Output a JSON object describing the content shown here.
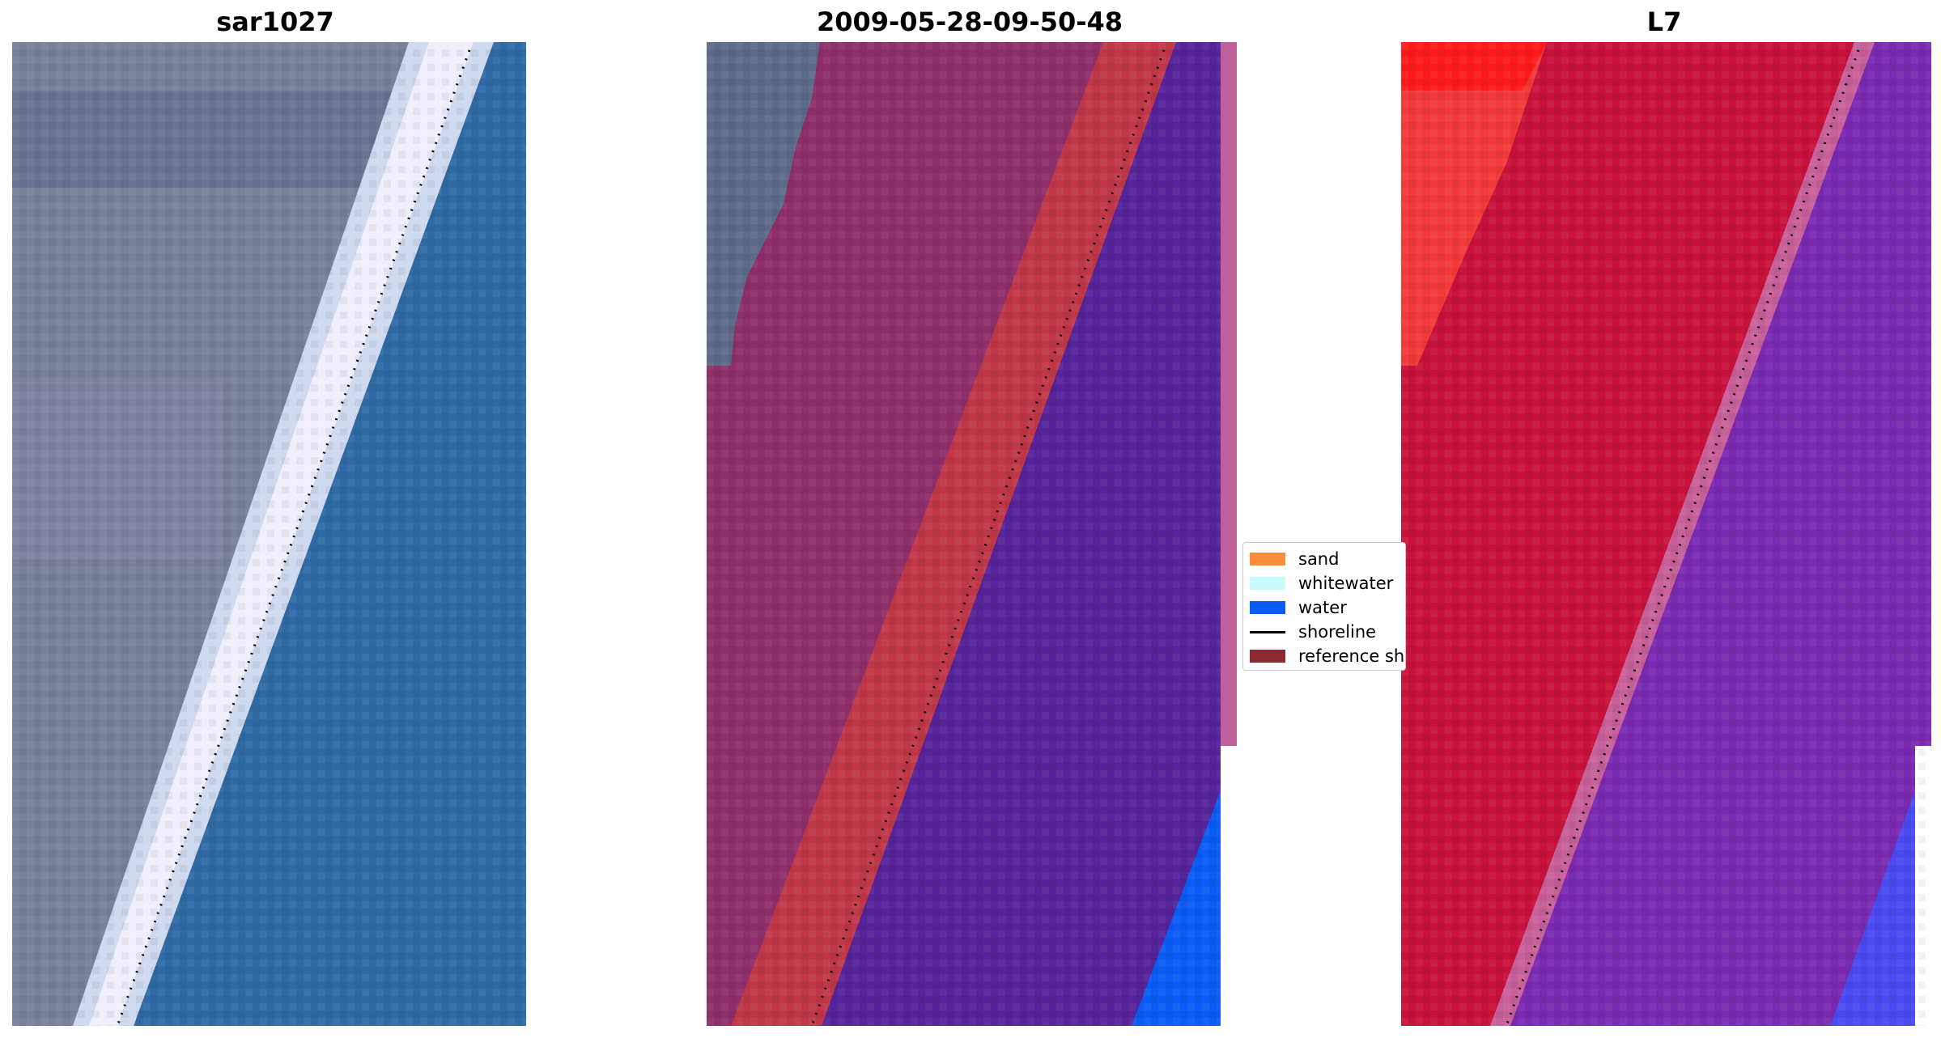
{
  "panels": [
    {
      "title": "sar1027"
    },
    {
      "title": "2009-05-28-09-50-48"
    },
    {
      "title": "L7"
    }
  ],
  "legend": {
    "items": [
      {
        "label": "sand",
        "color": "#ff8c3a",
        "kind": "patch"
      },
      {
        "label": "whitewater",
        "color": "#c8fcfc",
        "kind": "patch"
      },
      {
        "label": "water",
        "color": "#0a5cf5",
        "kind": "patch"
      },
      {
        "label": "shoreline",
        "color": "#000000",
        "kind": "line"
      },
      {
        "label": "reference sh",
        "color": "#8b2a30",
        "kind": "patch"
      }
    ]
  },
  "colors": {
    "land_rgb": "#7a7f9a",
    "ocean_rgb": "#2f6aa5",
    "beach_white": "#f0eefa",
    "classified_land": "#8e2e6a",
    "reference_band": "#c03848",
    "classified_sea": "#55239a",
    "classified_water": "#0a5cf5",
    "mndwi_land": "#c8123c",
    "mndwi_sea": "#7a2ab0",
    "mndwi_water": "#4a4af0"
  }
}
